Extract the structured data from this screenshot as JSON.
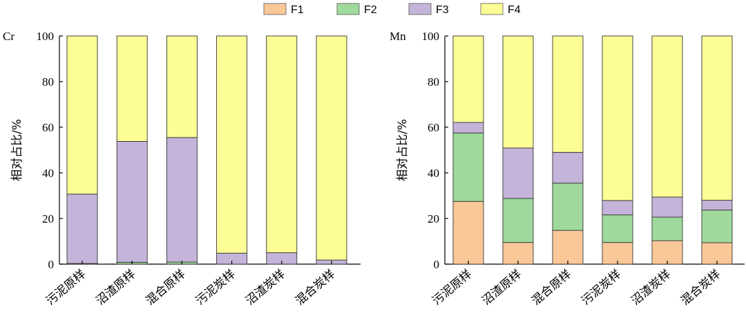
{
  "legend": {
    "entries": [
      {
        "name": "F1",
        "color": "#fac898"
      },
      {
        "name": "F2",
        "color": "#9fd99c"
      },
      {
        "name": "F3",
        "color": "#c4b4d9"
      },
      {
        "name": "F4",
        "color": "#fdfd96"
      }
    ]
  },
  "chart_data": [
    {
      "type": "bar",
      "stacked": true,
      "panel_label": "Cr",
      "ylabel": "相对占比/%",
      "ylim": [
        0,
        100
      ],
      "yticks": [
        0,
        20,
        40,
        60,
        80,
        100
      ],
      "categories": [
        "污泥原样",
        "沼渣原样",
        "混合原样",
        "污泥炭样",
        "沼渣炭样",
        "混合炭样"
      ],
      "series": [
        {
          "name": "F1",
          "color": "#fac898",
          "values": [
            0,
            0,
            0,
            0,
            0,
            0
          ]
        },
        {
          "name": "F2",
          "color": "#9fd99c",
          "values": [
            0.3,
            0.8,
            0.9,
            0,
            0,
            0
          ]
        },
        {
          "name": "F3",
          "color": "#c4b4d9",
          "values": [
            30.4,
            53.0,
            54.6,
            4.8,
            5.0,
            1.8
          ]
        },
        {
          "name": "F4",
          "color": "#fdfd96",
          "values": [
            69.3,
            46.2,
            44.5,
            95.2,
            95.0,
            98.2
          ]
        }
      ]
    },
    {
      "type": "bar",
      "stacked": true,
      "panel_label": "Mn",
      "ylabel": "相对占比/%",
      "ylim": [
        0,
        100
      ],
      "yticks": [
        0,
        20,
        40,
        60,
        80,
        100
      ],
      "categories": [
        "污泥原样",
        "沼渣原样",
        "混合原样",
        "污泥炭样",
        "沼渣炭样",
        "混合炭样"
      ],
      "series": [
        {
          "name": "F1",
          "color": "#fac898",
          "values": [
            27.5,
            9.5,
            14.8,
            9.5,
            10.3,
            9.4
          ]
        },
        {
          "name": "F2",
          "color": "#9fd99c",
          "values": [
            30.0,
            19.3,
            20.7,
            12.1,
            10.3,
            14.3
          ]
        },
        {
          "name": "F3",
          "color": "#c4b4d9",
          "values": [
            4.6,
            22.1,
            13.5,
            6.3,
            8.8,
            4.3
          ]
        },
        {
          "name": "F4",
          "color": "#fdfd96",
          "values": [
            37.9,
            49.1,
            51.0,
            72.1,
            70.6,
            72.0
          ]
        }
      ]
    }
  ]
}
